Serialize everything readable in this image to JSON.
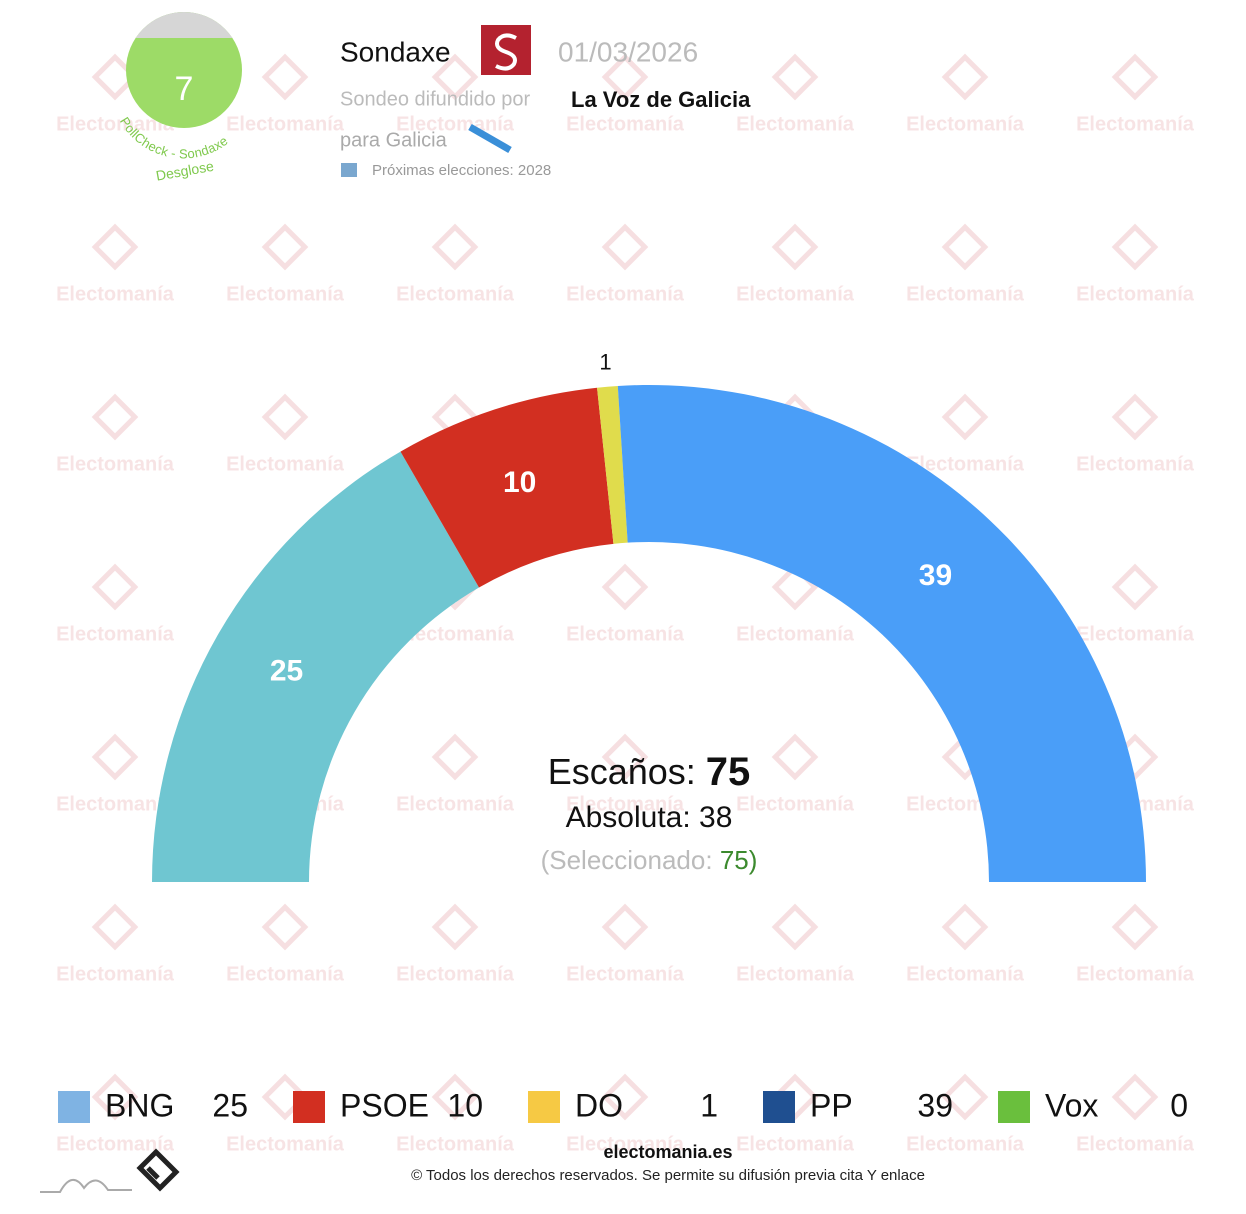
{
  "header": {
    "pollster": "Sondaxe",
    "date": "01/03/2026",
    "spread_by_label": "Sondeo difundido por",
    "spread_by": "La Voz de Galicia",
    "region": "para Galicia",
    "next_elections": "Próximas elecciones: 2028",
    "pollcheck_score": "7",
    "pollcheck_label": "PollCheck - Sondaxe",
    "breakdown": "Desglose",
    "watermark": "Electomanía"
  },
  "chart_data": {
    "type": "parliament",
    "series": [
      {
        "name": "BNG",
        "color": "#6fc6d1",
        "icon_color": "#7fb3e3",
        "values": [
          25
        ]
      },
      {
        "name": "PSOE",
        "color": "#d22f21",
        "icon_color": "#d22f21",
        "values": [
          10
        ]
      },
      {
        "name": "DO",
        "color": "#e0dc4c",
        "icon_color": "#f6c944",
        "values": [
          1
        ]
      },
      {
        "name": "PP",
        "color": "#4a9ef8",
        "icon_color": "#1f4f90",
        "values": [
          39
        ]
      },
      {
        "name": "Vox",
        "color": "#6abf3d",
        "icon_color": "#6abf3d",
        "values": [
          0
        ]
      }
    ],
    "seats_label": "Escaños:",
    "seats": 75,
    "majority_label": "Absoluta:",
    "majority": 38,
    "selected_label": "(Seleccionado:",
    "selected": 75,
    "selected_close": ")"
  },
  "footer": {
    "site": "electomania.es",
    "copyright": "© Todos los derechos reservados. Se permite su difusión previa cita Y enlace"
  }
}
